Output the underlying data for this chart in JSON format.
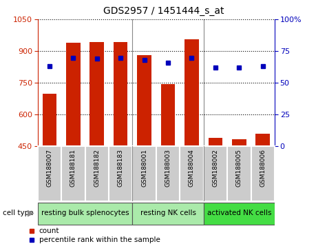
{
  "title": "GDS2957 / 1451444_s_at",
  "samples": [
    "GSM188007",
    "GSM188181",
    "GSM188182",
    "GSM188183",
    "GSM188001",
    "GSM188003",
    "GSM188004",
    "GSM188002",
    "GSM188005",
    "GSM188006"
  ],
  "counts": [
    700,
    940,
    942,
    945,
    880,
    745,
    955,
    490,
    485,
    510
  ],
  "percentile_ranks": [
    63,
    70,
    69,
    70,
    68,
    66,
    70,
    62,
    62,
    63
  ],
  "ylim_left": [
    450,
    1050
  ],
  "ylim_right": [
    0,
    100
  ],
  "yticks_left": [
    450,
    600,
    750,
    900,
    1050
  ],
  "yticks_right": [
    0,
    25,
    50,
    75,
    100
  ],
  "groups": [
    {
      "label": "resting bulk splenocytes",
      "start": 0,
      "end": 3,
      "color": "#AAEAAA"
    },
    {
      "label": "resting NK cells",
      "start": 4,
      "end": 6,
      "color": "#AAEAAA"
    },
    {
      "label": "activated NK cells",
      "start": 7,
      "end": 9,
      "color": "#44DD44"
    }
  ],
  "bar_color": "#CC2200",
  "bar_bottom": 450,
  "dot_color": "#0000BB",
  "axis_color_left": "#CC2200",
  "axis_color_right": "#0000BB",
  "bar_width": 0.6,
  "sample_box_color": "#CCCCCC",
  "group_sep_color": "#888888",
  "cell_type_label": "cell type",
  "cell_type_arrow": "▶"
}
